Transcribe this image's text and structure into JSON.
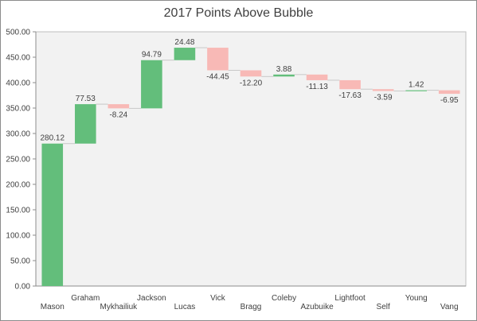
{
  "chart_data": {
    "type": "waterfall",
    "title": "2017 Points Above Bubble",
    "categories": [
      "Mason",
      "Graham",
      "Mykhailiuk",
      "Jackson",
      "Lucas",
      "Vick",
      "Bragg",
      "Coleby",
      "Azubuike",
      "Lightfoot",
      "Self",
      "Young",
      "Vang"
    ],
    "values": [
      280.12,
      77.53,
      -8.24,
      94.79,
      24.48,
      -44.45,
      -12.2,
      3.88,
      -11.13,
      -17.63,
      -3.59,
      1.42,
      -6.95
    ],
    "value_labels": [
      "280.12",
      "77.53",
      "-8.24",
      "94.79",
      "24.48",
      "-44.45",
      "-12.20",
      "3.88",
      "-11.13",
      "-17.63",
      "-3.59",
      "1.42",
      "-6.95"
    ],
    "y_ticks": [
      "0.00",
      "50.00",
      "100.00",
      "150.00",
      "200.00",
      "250.00",
      "300.00",
      "350.00",
      "400.00",
      "450.00",
      "500.00"
    ],
    "ylim": [
      0,
      500
    ],
    "grid": false,
    "colors": {
      "increase": "#63be7b",
      "decrease": "#f8b9b6",
      "connector": "#c8c8c8",
      "plot_bg": "#f2f2f2"
    }
  }
}
